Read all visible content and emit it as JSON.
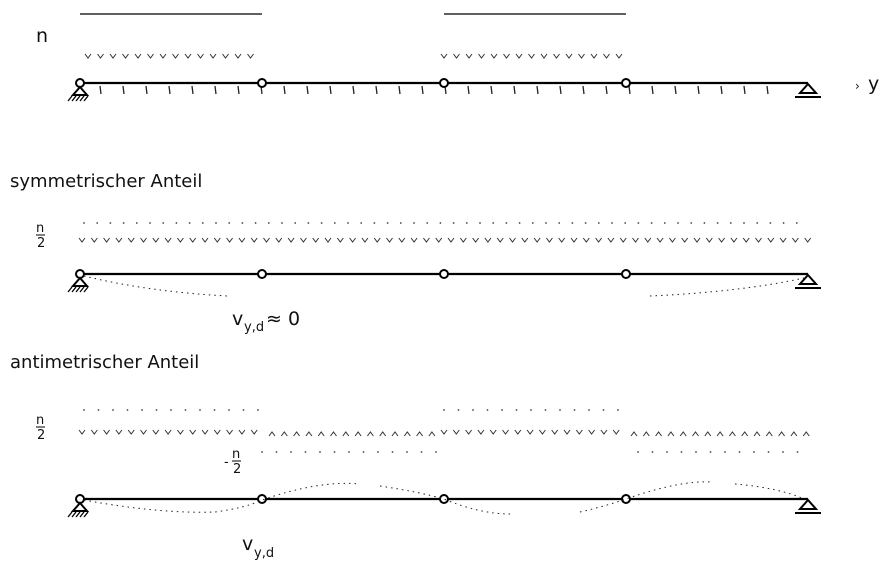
{
  "diagram": {
    "load_label": "n",
    "axis_label": "y",
    "case_symmetric": {
      "title": "symmetrischer Anteil",
      "load_numerator": "n",
      "load_denominator": "2",
      "deflection_label": "v",
      "deflection_subscript": "y,d",
      "deflection_value": "≈ 0"
    },
    "case_antimetric": {
      "title": "antimetrischer Anteil",
      "load_numerator": "n",
      "load_denominator": "2",
      "neg_sign": "-",
      "neg_numerator": "n",
      "neg_denominator": "2",
      "deflection_label": "v",
      "deflection_subscript": "y,d"
    },
    "colors": {
      "stroke": "#000000",
      "background": "#ffffff"
    }
  }
}
